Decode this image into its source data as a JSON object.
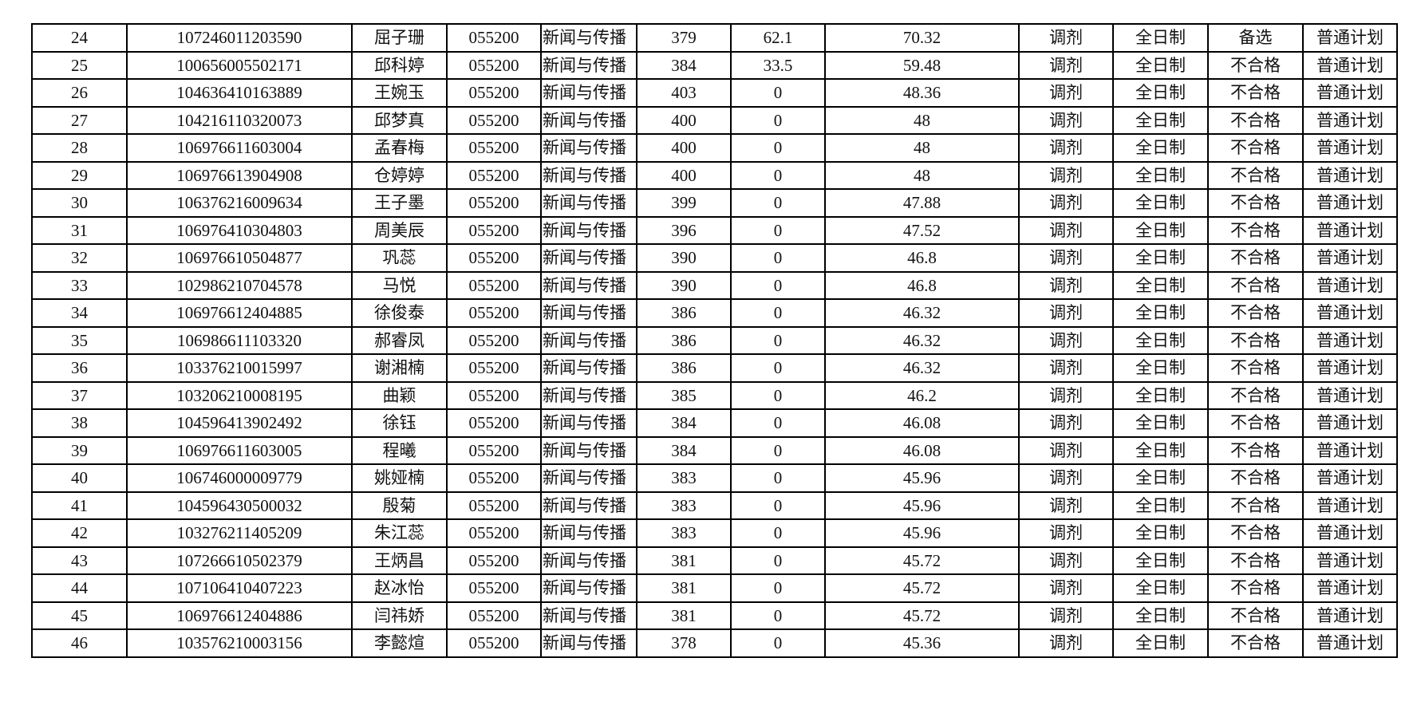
{
  "table": {
    "rows": [
      [
        "24",
        "107246011203590",
        "屈子珊",
        "055200",
        "新闻与传播",
        "379",
        "62.1",
        "70.32",
        "调剂",
        "全日制",
        "备选",
        "普通计划"
      ],
      [
        "25",
        "100656005502171",
        "邱科婷",
        "055200",
        "新闻与传播",
        "384",
        "33.5",
        "59.48",
        "调剂",
        "全日制",
        "不合格",
        "普通计划"
      ],
      [
        "26",
        "104636410163889",
        "王婉玉",
        "055200",
        "新闻与传播",
        "403",
        "0",
        "48.36",
        "调剂",
        "全日制",
        "不合格",
        "普通计划"
      ],
      [
        "27",
        "104216110320073",
        "邱梦真",
        "055200",
        "新闻与传播",
        "400",
        "0",
        "48",
        "调剂",
        "全日制",
        "不合格",
        "普通计划"
      ],
      [
        "28",
        "106976611603004",
        "孟春梅",
        "055200",
        "新闻与传播",
        "400",
        "0",
        "48",
        "调剂",
        "全日制",
        "不合格",
        "普通计划"
      ],
      [
        "29",
        "106976613904908",
        "仓婷婷",
        "055200",
        "新闻与传播",
        "400",
        "0",
        "48",
        "调剂",
        "全日制",
        "不合格",
        "普通计划"
      ],
      [
        "30",
        "106376216009634",
        "王子墨",
        "055200",
        "新闻与传播",
        "399",
        "0",
        "47.88",
        "调剂",
        "全日制",
        "不合格",
        "普通计划"
      ],
      [
        "31",
        "106976410304803",
        "周美辰",
        "055200",
        "新闻与传播",
        "396",
        "0",
        "47.52",
        "调剂",
        "全日制",
        "不合格",
        "普通计划"
      ],
      [
        "32",
        "106976610504877",
        "巩蕊",
        "055200",
        "新闻与传播",
        "390",
        "0",
        "46.8",
        "调剂",
        "全日制",
        "不合格",
        "普通计划"
      ],
      [
        "33",
        "102986210704578",
        "马悦",
        "055200",
        "新闻与传播",
        "390",
        "0",
        "46.8",
        "调剂",
        "全日制",
        "不合格",
        "普通计划"
      ],
      [
        "34",
        "106976612404885",
        "徐俊泰",
        "055200",
        "新闻与传播",
        "386",
        "0",
        "46.32",
        "调剂",
        "全日制",
        "不合格",
        "普通计划"
      ],
      [
        "35",
        "106986611103320",
        "郝睿凤",
        "055200",
        "新闻与传播",
        "386",
        "0",
        "46.32",
        "调剂",
        "全日制",
        "不合格",
        "普通计划"
      ],
      [
        "36",
        "103376210015997",
        "谢湘楠",
        "055200",
        "新闻与传播",
        "386",
        "0",
        "46.32",
        "调剂",
        "全日制",
        "不合格",
        "普通计划"
      ],
      [
        "37",
        "103206210008195",
        "曲颖",
        "055200",
        "新闻与传播",
        "385",
        "0",
        "46.2",
        "调剂",
        "全日制",
        "不合格",
        "普通计划"
      ],
      [
        "38",
        "104596413902492",
        "徐钰",
        "055200",
        "新闻与传播",
        "384",
        "0",
        "46.08",
        "调剂",
        "全日制",
        "不合格",
        "普通计划"
      ],
      [
        "39",
        "106976611603005",
        "程曦",
        "055200",
        "新闻与传播",
        "384",
        "0",
        "46.08",
        "调剂",
        "全日制",
        "不合格",
        "普通计划"
      ],
      [
        "40",
        "106746000009779",
        "姚娅楠",
        "055200",
        "新闻与传播",
        "383",
        "0",
        "45.96",
        "调剂",
        "全日制",
        "不合格",
        "普通计划"
      ],
      [
        "41",
        "104596430500032",
        "殷菊",
        "055200",
        "新闻与传播",
        "383",
        "0",
        "45.96",
        "调剂",
        "全日制",
        "不合格",
        "普通计划"
      ],
      [
        "42",
        "103276211405209",
        "朱江蕊",
        "055200",
        "新闻与传播",
        "383",
        "0",
        "45.96",
        "调剂",
        "全日制",
        "不合格",
        "普通计划"
      ],
      [
        "43",
        "107266610502379",
        "王炳昌",
        "055200",
        "新闻与传播",
        "381",
        "0",
        "45.72",
        "调剂",
        "全日制",
        "不合格",
        "普通计划"
      ],
      [
        "44",
        "107106410407223",
        "赵冰怡",
        "055200",
        "新闻与传播",
        "381",
        "0",
        "45.72",
        "调剂",
        "全日制",
        "不合格",
        "普通计划"
      ],
      [
        "45",
        "106976612404886",
        "闫祎娇",
        "055200",
        "新闻与传播",
        "381",
        "0",
        "45.72",
        "调剂",
        "全日制",
        "不合格",
        "普通计划"
      ],
      [
        "46",
        "103576210003156",
        "李懿煊",
        "055200",
        "新闻与传播",
        "378",
        "0",
        "45.36",
        "调剂",
        "全日制",
        "不合格",
        "普通计划"
      ]
    ]
  }
}
